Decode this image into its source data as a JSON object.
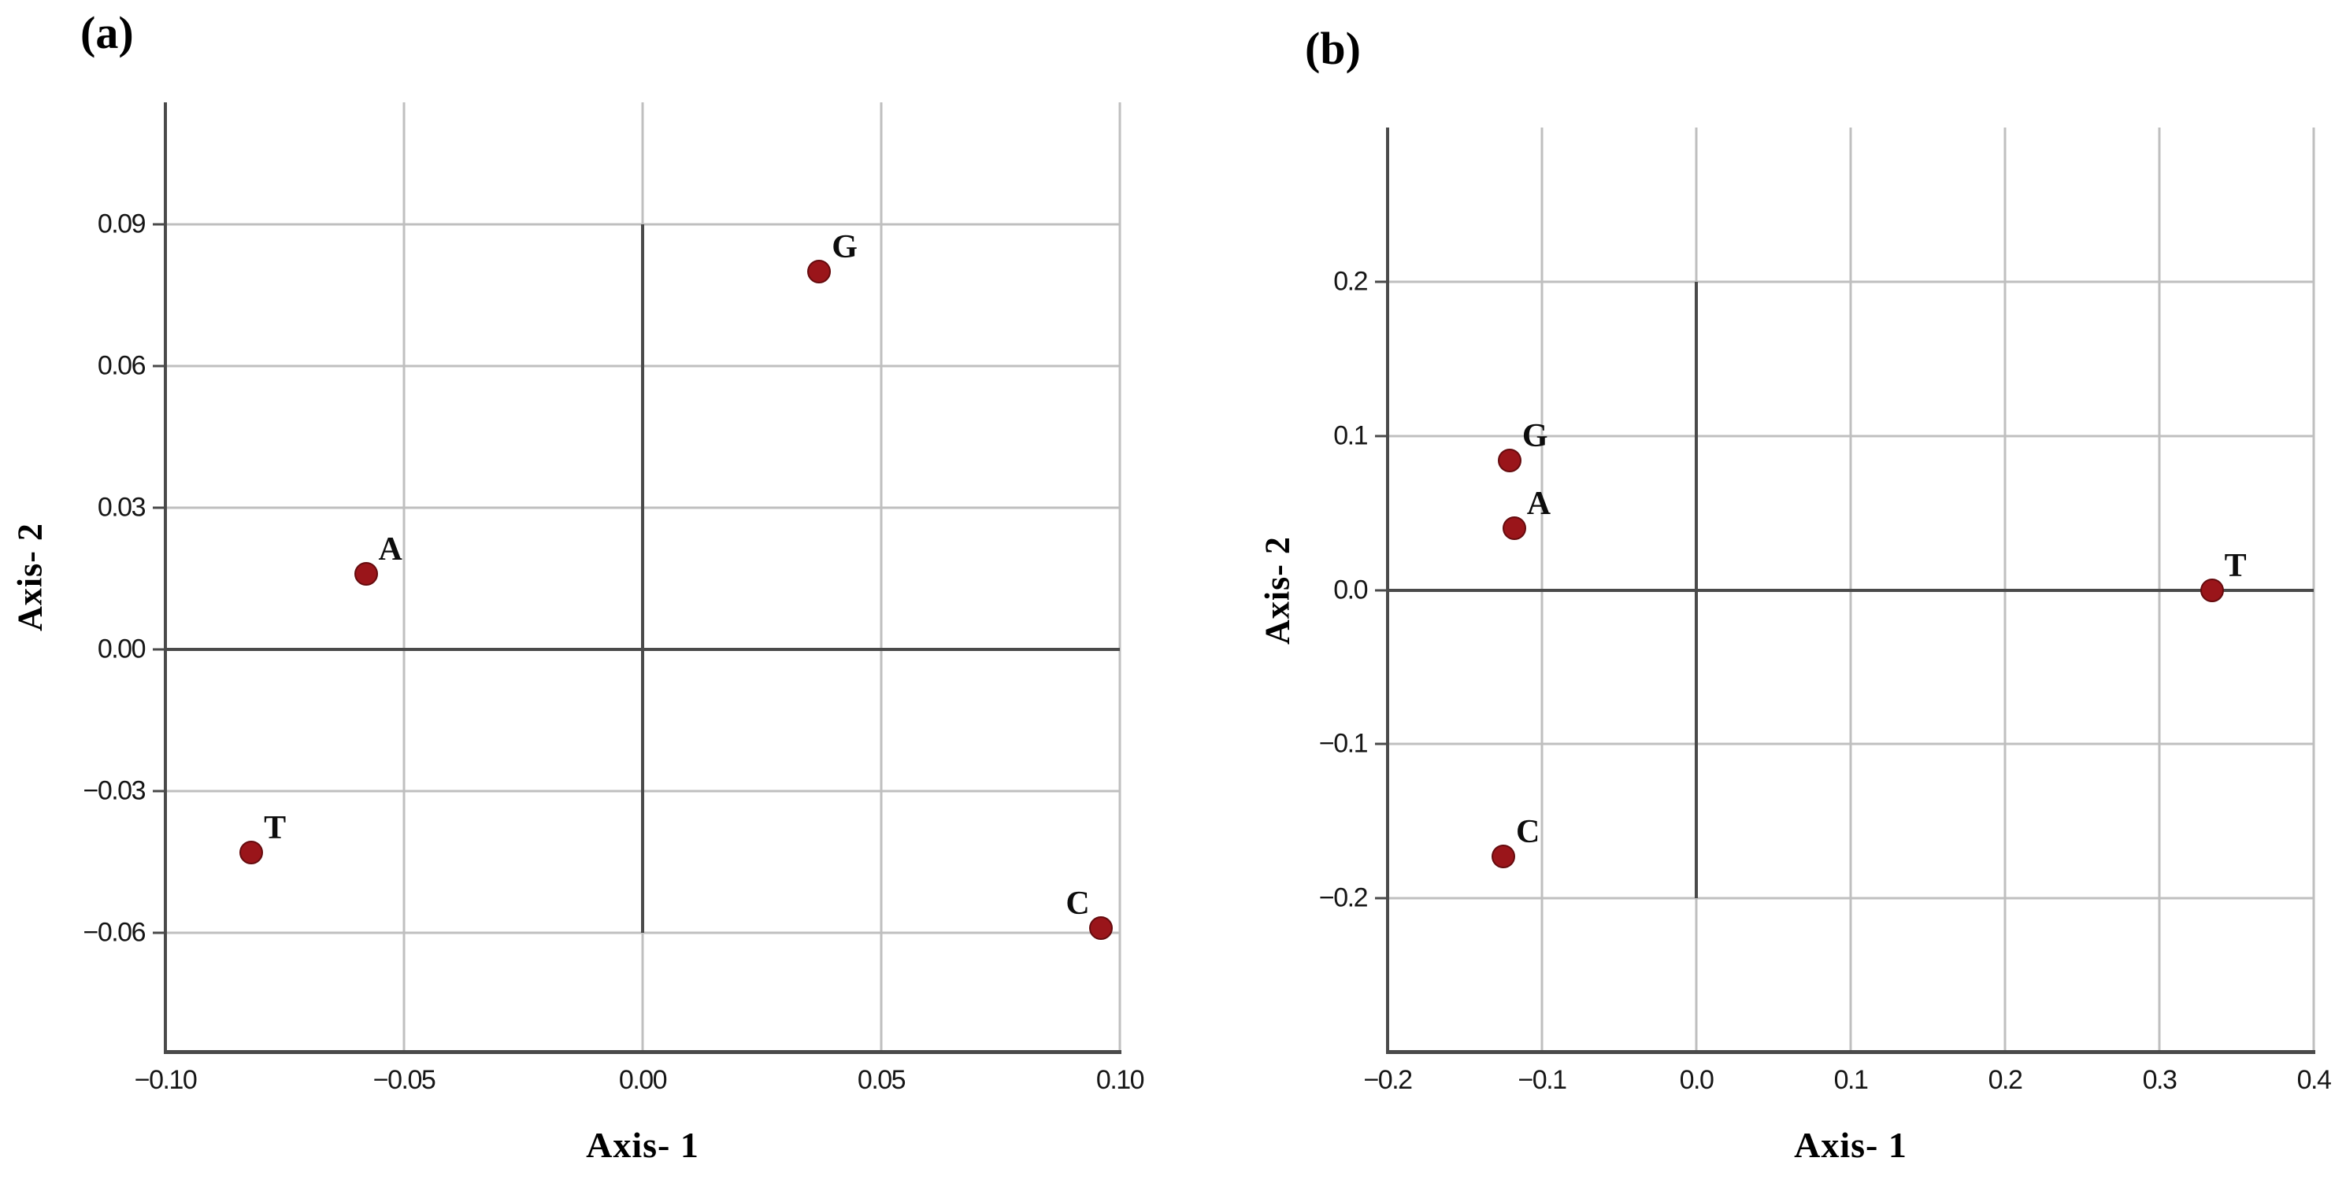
{
  "style": {
    "background": "#ffffff",
    "point_color": "#9a151a",
    "point_border_color": "#650b0e",
    "grid_color": "#bfbfbf",
    "axis_color": "#4a4a4a",
    "tick_text_color": "#161616",
    "label_text_color": "#000000"
  },
  "chart_data": [
    {
      "type": "scatter",
      "panel_label": "(a)",
      "xlabel": "Axis- 1",
      "ylabel": "Axis- 2",
      "xlim": [
        -0.1,
        0.1
      ],
      "ylim": [
        -0.0853,
        0.1158
      ],
      "grid": true,
      "legend": "none",
      "x_ticks": [
        {
          "value": -0.1,
          "label": "−0.10"
        },
        {
          "value": -0.05,
          "label": "−0.05"
        },
        {
          "value": 0.0,
          "label": "0.00"
        },
        {
          "value": 0.05,
          "label": "0.05"
        },
        {
          "value": 0.1,
          "label": "0.10"
        }
      ],
      "y_ticks": [
        {
          "value": 0.09,
          "label": "0.09"
        },
        {
          "value": 0.06,
          "label": "0.06"
        },
        {
          "value": 0.03,
          "label": "0.03"
        },
        {
          "value": 0.0,
          "label": "0.00"
        },
        {
          "value": -0.03,
          "label": "−0.03"
        },
        {
          "value": -0.06,
          "label": "−0.06"
        }
      ],
      "reference_line_vertical": {
        "x": 0,
        "y_from": -0.06,
        "y_to": 0.09
      },
      "reference_line_horizontal": {
        "y": 0
      },
      "points": [
        {
          "label": "G",
          "x": 0.037,
          "y": 0.08,
          "anchor": "ne"
        },
        {
          "label": "A",
          "x": -0.058,
          "y": 0.016,
          "anchor": "ne"
        },
        {
          "label": "T",
          "x": -0.082,
          "y": -0.043,
          "anchor": "ne"
        },
        {
          "label": "C",
          "x": 0.096,
          "y": -0.059,
          "anchor": "nw"
        }
      ]
    },
    {
      "type": "scatter",
      "panel_label": "(b)",
      "xlabel": "Axis- 1",
      "ylabel": "Axis- 2",
      "xlim": [
        -0.2,
        0.4
      ],
      "ylim": [
        -0.3,
        0.3
      ],
      "grid": true,
      "legend": "none",
      "x_ticks": [
        {
          "value": -0.2,
          "label": "−0.2"
        },
        {
          "value": -0.1,
          "label": "−0.1"
        },
        {
          "value": 0.0,
          "label": "0.0"
        },
        {
          "value": 0.1,
          "label": "0.1"
        },
        {
          "value": 0.2,
          "label": "0.2"
        },
        {
          "value": 0.3,
          "label": "0.3"
        },
        {
          "value": 0.4,
          "label": "0.4"
        }
      ],
      "y_ticks": [
        {
          "value": 0.2,
          "label": "0.2"
        },
        {
          "value": 0.1,
          "label": "0.1"
        },
        {
          "value": 0.0,
          "label": "0.0"
        },
        {
          "value": -0.1,
          "label": "−0.1"
        },
        {
          "value": -0.2,
          "label": "−0.2"
        }
      ],
      "reference_line_vertical": {
        "x": 0,
        "y_from": -0.2,
        "y_to": 0.2
      },
      "reference_line_horizontal": {
        "y": 0
      },
      "points": [
        {
          "label": "G",
          "x": -0.121,
          "y": 0.084,
          "anchor": "ne"
        },
        {
          "label": "A",
          "x": -0.118,
          "y": 0.04,
          "anchor": "ne"
        },
        {
          "label": "T",
          "x": 0.334,
          "y": 0.0,
          "anchor": "ne"
        },
        {
          "label": "C",
          "x": -0.125,
          "y": -0.173,
          "anchor": "ne"
        }
      ]
    }
  ]
}
